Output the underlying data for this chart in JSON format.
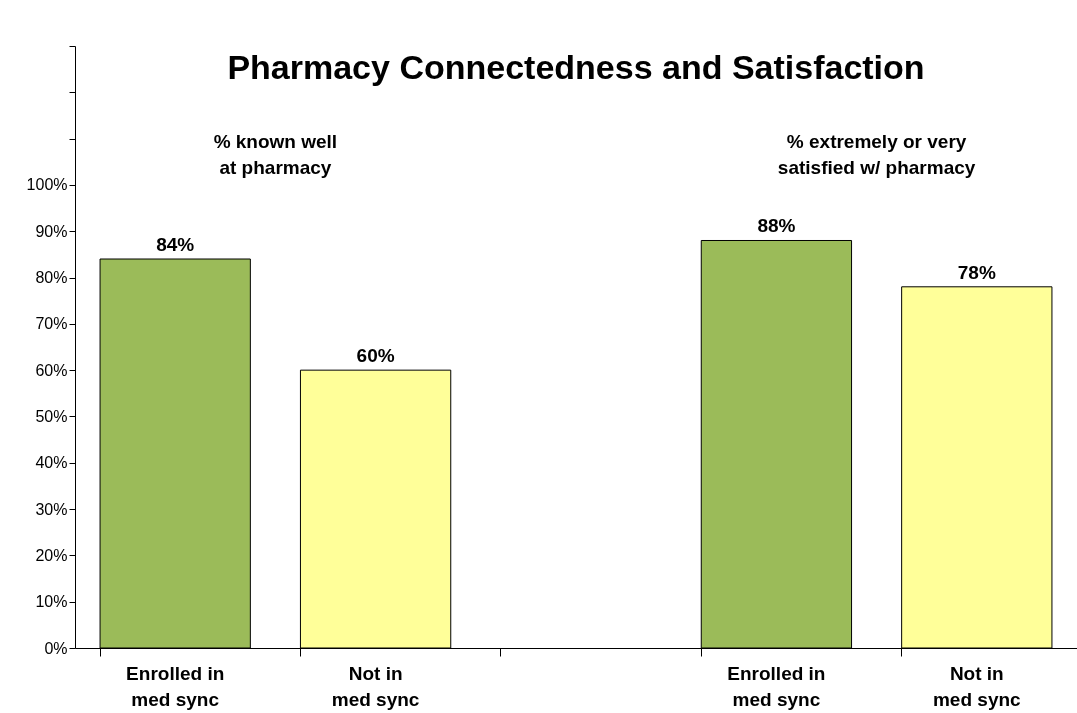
{
  "chart_data": {
    "type": "bar",
    "title": "Pharmacy Connectedness and Satisfaction",
    "categories": [
      "Enrolled in\nmed sync",
      "Not in\nmed sync",
      null,
      "Enrolled in\nmed sync",
      "Not in\nmed sync"
    ],
    "values": [
      84,
      60,
      null,
      88,
      78
    ],
    "colors": [
      "#9bbb59",
      "#ffff99",
      null,
      "#9bbb59",
      "#ffff99"
    ],
    "value_labels": [
      "84%",
      "60%",
      null,
      "88%",
      "78%"
    ],
    "annotations": [
      "% known well\nat pharmacy",
      "% extremely or very\nsatisfied w/ pharmacy"
    ],
    "ylim": [
      0,
      130
    ],
    "yticks": [
      {
        "value": 0,
        "label": "0%"
      },
      {
        "value": 10,
        "label": "10%"
      },
      {
        "value": 20,
        "label": "20%"
      },
      {
        "value": 30,
        "label": "30%"
      },
      {
        "value": 40,
        "label": "40%"
      },
      {
        "value": 50,
        "label": "50%"
      },
      {
        "value": 60,
        "label": "60%"
      },
      {
        "value": 70,
        "label": "70%"
      },
      {
        "value": 80,
        "label": "80%"
      },
      {
        "value": 90,
        "label": "90%"
      },
      {
        "value": 100,
        "label": "100%"
      },
      {
        "value": 110,
        "label": null
      },
      {
        "value": 120,
        "label": null
      },
      {
        "value": 130,
        "label": null
      }
    ],
    "grid": false,
    "legend": false
  }
}
